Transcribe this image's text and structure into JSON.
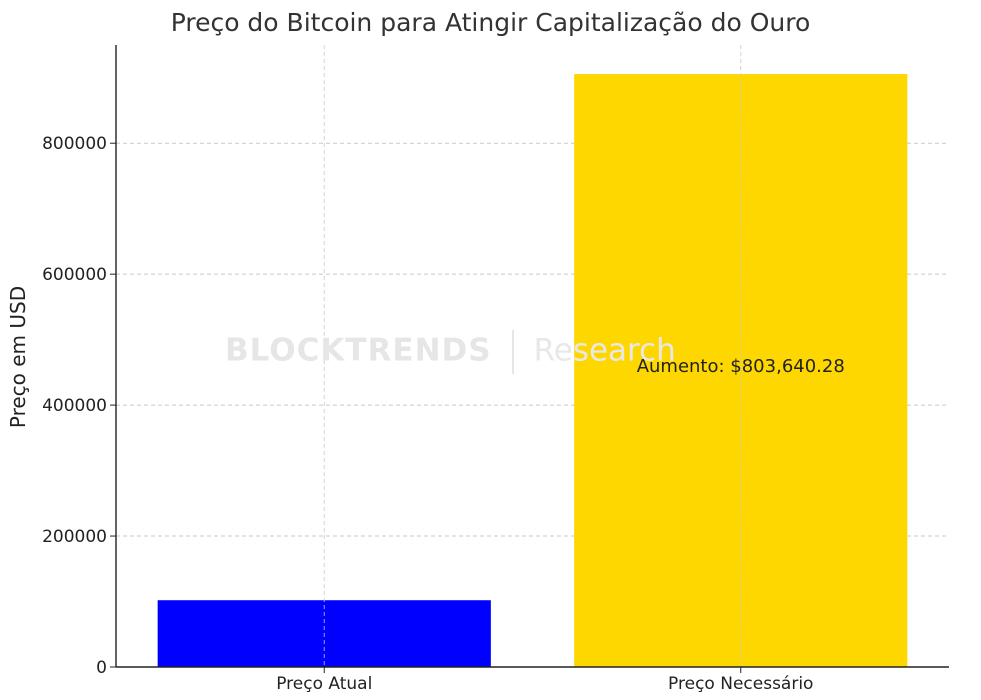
{
  "chart_data": {
    "type": "bar",
    "title": "Preço do Bitcoin para Atingir Capitalização do Ouro",
    "xlabel": "",
    "ylabel": "Preço em USD",
    "categories": [
      "Preço Atual",
      "Preço Necessário"
    ],
    "values": [
      102000,
      905640.28
    ],
    "colors": [
      "#0000ff",
      "#ffd700"
    ],
    "ylim": [
      0,
      950000
    ],
    "yticks": [
      0,
      200000,
      400000,
      600000,
      800000
    ],
    "ytick_labels": [
      "0",
      "200000",
      "400000",
      "600000",
      "800000"
    ],
    "grid": true,
    "annotation": {
      "text": "Aumento: $803,640.28",
      "category_index": 1,
      "y": 460000
    }
  },
  "watermark": {
    "brand": "BLOCKTRENDS",
    "sub": "Research"
  }
}
